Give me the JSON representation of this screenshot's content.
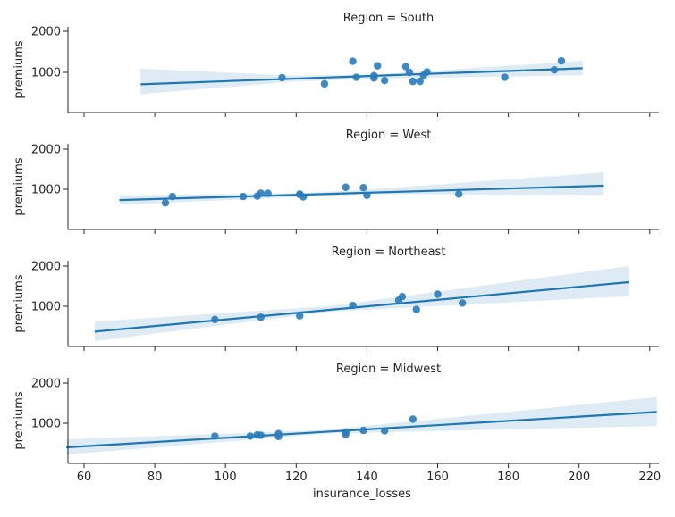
{
  "chart_data": {
    "type": "scatter",
    "kind": "lmplot-facets",
    "xlabel": "insurance_losses",
    "ylabel": "premiums",
    "xlim": [
      55,
      222
    ],
    "ylim": [
      200,
      2100
    ],
    "xticks": [
      60,
      80,
      100,
      120,
      140,
      160,
      180,
      200,
      220
    ],
    "yticks": [
      1000,
      2000
    ],
    "colors": {
      "points": "#2b7bba",
      "line": "#1f77b4",
      "band": "#1f77b4"
    },
    "facets": [
      {
        "title": "Region = South",
        "points": [
          [
            116,
            870
          ],
          [
            128,
            720
          ],
          [
            136,
            1270
          ],
          [
            137,
            880
          ],
          [
            142,
            860
          ],
          [
            142,
            920
          ],
          [
            143,
            1160
          ],
          [
            145,
            800
          ],
          [
            151,
            1140
          ],
          [
            152,
            1000
          ],
          [
            153,
            780
          ],
          [
            155,
            780
          ],
          [
            156,
            930
          ],
          [
            157,
            1010
          ],
          [
            179,
            880
          ],
          [
            193,
            1060
          ],
          [
            195,
            1280
          ]
        ],
        "fit": {
          "x": [
            76,
            201
          ],
          "y": [
            710,
            1100
          ]
        },
        "ci": {
          "x": [
            76,
            120,
            145,
            201
          ],
          "lower": [
            470,
            780,
            850,
            930
          ],
          "upper": [
            1090,
            920,
            960,
            1280
          ]
        }
      },
      {
        "title": "Region = West",
        "points": [
          [
            83,
            660
          ],
          [
            85,
            820
          ],
          [
            105,
            820
          ],
          [
            109,
            830
          ],
          [
            110,
            900
          ],
          [
            112,
            900
          ],
          [
            121,
            870
          ],
          [
            121,
            880
          ],
          [
            122,
            810
          ],
          [
            134,
            1050
          ],
          [
            139,
            1040
          ],
          [
            140,
            850
          ],
          [
            166,
            880
          ]
        ],
        "fit": {
          "x": [
            70,
            207
          ],
          "y": [
            730,
            1090
          ]
        },
        "ci": {
          "x": [
            70,
            120,
            140,
            207
          ],
          "lower": [
            620,
            800,
            880,
            860
          ],
          "upper": [
            850,
            900,
            990,
            1420
          ]
        }
      },
      {
        "title": "Region = Northeast",
        "points": [
          [
            97,
            670
          ],
          [
            110,
            730
          ],
          [
            121,
            760
          ],
          [
            136,
            1020
          ],
          [
            149,
            1150
          ],
          [
            150,
            1240
          ],
          [
            154,
            920
          ],
          [
            160,
            1300
          ],
          [
            167,
            1080
          ]
        ],
        "fit": {
          "x": [
            63,
            214
          ],
          "y": [
            370,
            1600
          ]
        },
        "ci": {
          "x": [
            63,
            130,
            214
          ],
          "lower": [
            130,
            870,
            1250
          ],
          "upper": [
            620,
            1010,
            2000
          ]
        }
      },
      {
        "title": "Region = Midwest",
        "points": [
          [
            97,
            680
          ],
          [
            107,
            680
          ],
          [
            109,
            710
          ],
          [
            110,
            700
          ],
          [
            115,
            740
          ],
          [
            115,
            670
          ],
          [
            134,
            780
          ],
          [
            134,
            720
          ],
          [
            139,
            820
          ],
          [
            145,
            810
          ],
          [
            153,
            1100
          ]
        ],
        "fit": {
          "x": [
            55,
            222
          ],
          "y": [
            400,
            1280
          ]
        },
        "ci": {
          "x": [
            55,
            128,
            222
          ],
          "lower": [
            220,
            740,
            930
          ],
          "upper": [
            600,
            830,
            1650
          ]
        }
      }
    ]
  }
}
